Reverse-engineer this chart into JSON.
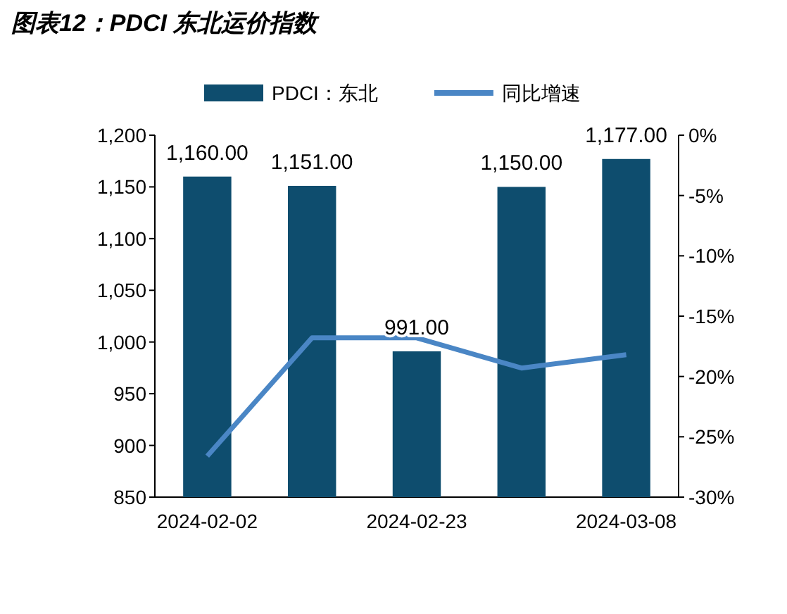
{
  "chart_data": {
    "type": "bar",
    "title": "图表12：PDCI 东北运价指数",
    "categories": [
      "2024-02-02",
      null,
      "2024-02-23",
      null,
      "2024-03-08"
    ],
    "series": [
      {
        "name": "PDCI：东北",
        "color": "#0e4d6e",
        "values": [
          1160,
          1151,
          991,
          1150,
          1177
        ],
        "value_labels": [
          "1,160.00",
          "1,151.00",
          "991.00",
          "1,150.00",
          "1,177.00"
        ]
      },
      {
        "name": "同比增速",
        "type": "line",
        "axis": "y2",
        "color": "#4a86c5",
        "values": [
          -26.6,
          -16.8,
          -16.8,
          -19.3,
          -18.2
        ]
      }
    ],
    "ylim": [
      850,
      1200
    ],
    "yticks": [
      {
        "value": 850,
        "label": "850"
      },
      {
        "value": 900,
        "label": "900"
      },
      {
        "value": 950,
        "label": "950"
      },
      {
        "value": 1000,
        "label": "1,000"
      },
      {
        "value": 1050,
        "label": "1,050"
      },
      {
        "value": 1100,
        "label": "1,100"
      },
      {
        "value": 1150,
        "label": "1,150"
      },
      {
        "value": 1200,
        "label": "1,200"
      }
    ],
    "y2lim": [
      -30,
      0
    ],
    "y2ticks": [
      {
        "value": 0,
        "label": "0%"
      },
      {
        "value": -5,
        "label": "-5%"
      },
      {
        "value": -10,
        "label": "-10%"
      },
      {
        "value": -15,
        "label": "-15%"
      },
      {
        "value": -20,
        "label": "-20%"
      },
      {
        "value": -25,
        "label": "-25%"
      },
      {
        "value": -30,
        "label": "-30%"
      }
    ],
    "legend": "top",
    "grid": false
  }
}
